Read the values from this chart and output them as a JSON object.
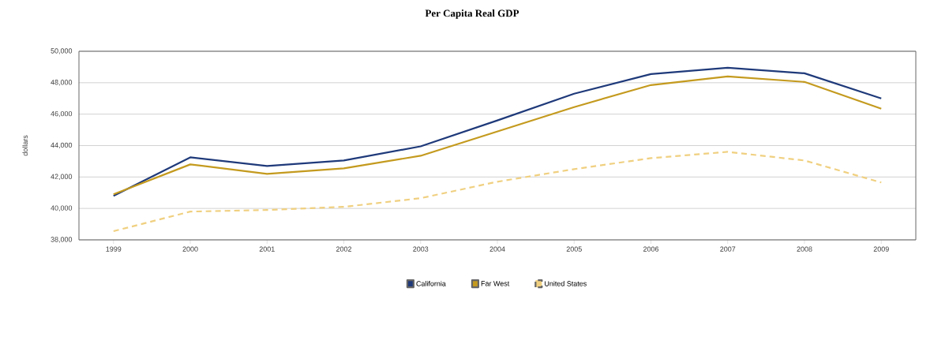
{
  "chart_data": {
    "type": "line",
    "title": "Per Capita Real GDP",
    "ylabel": "dollars",
    "categories": [
      "1999",
      "2000",
      "2001",
      "2002",
      "2003",
      "2004",
      "2005",
      "2006",
      "2007",
      "2008",
      "2009"
    ],
    "series": [
      {
        "name": "California",
        "color": "#1f3a7a",
        "line_style": "solid",
        "values": [
          40800,
          43250,
          42700,
          43050,
          43950,
          45600,
          47300,
          48550,
          48950,
          48600,
          47000
        ]
      },
      {
        "name": "Far West",
        "color": "#c49a1e",
        "line_style": "solid",
        "values": [
          40900,
          42800,
          42200,
          42550,
          43350,
          44900,
          46450,
          47850,
          48400,
          48050,
          46350
        ]
      },
      {
        "name": "United States",
        "color": "#f0d080",
        "line_style": "dashed",
        "values": [
          38550,
          39800,
          39900,
          40100,
          40650,
          41700,
          42500,
          43200,
          43600,
          43050,
          41650
        ]
      }
    ],
    "ylim": [
      38000,
      50000
    ],
    "yticks": [
      {
        "value": 38000,
        "label": "38,000"
      },
      {
        "value": 40000,
        "label": "40,000"
      },
      {
        "value": 42000,
        "label": "42,000"
      },
      {
        "value": 44000,
        "label": "44,000"
      },
      {
        "value": 46000,
        "label": "46,000"
      },
      {
        "value": 48000,
        "label": "48,000"
      },
      {
        "value": 50000,
        "label": "50,000"
      }
    ],
    "grid": "y",
    "legend": "bottom",
    "marker": "none"
  }
}
